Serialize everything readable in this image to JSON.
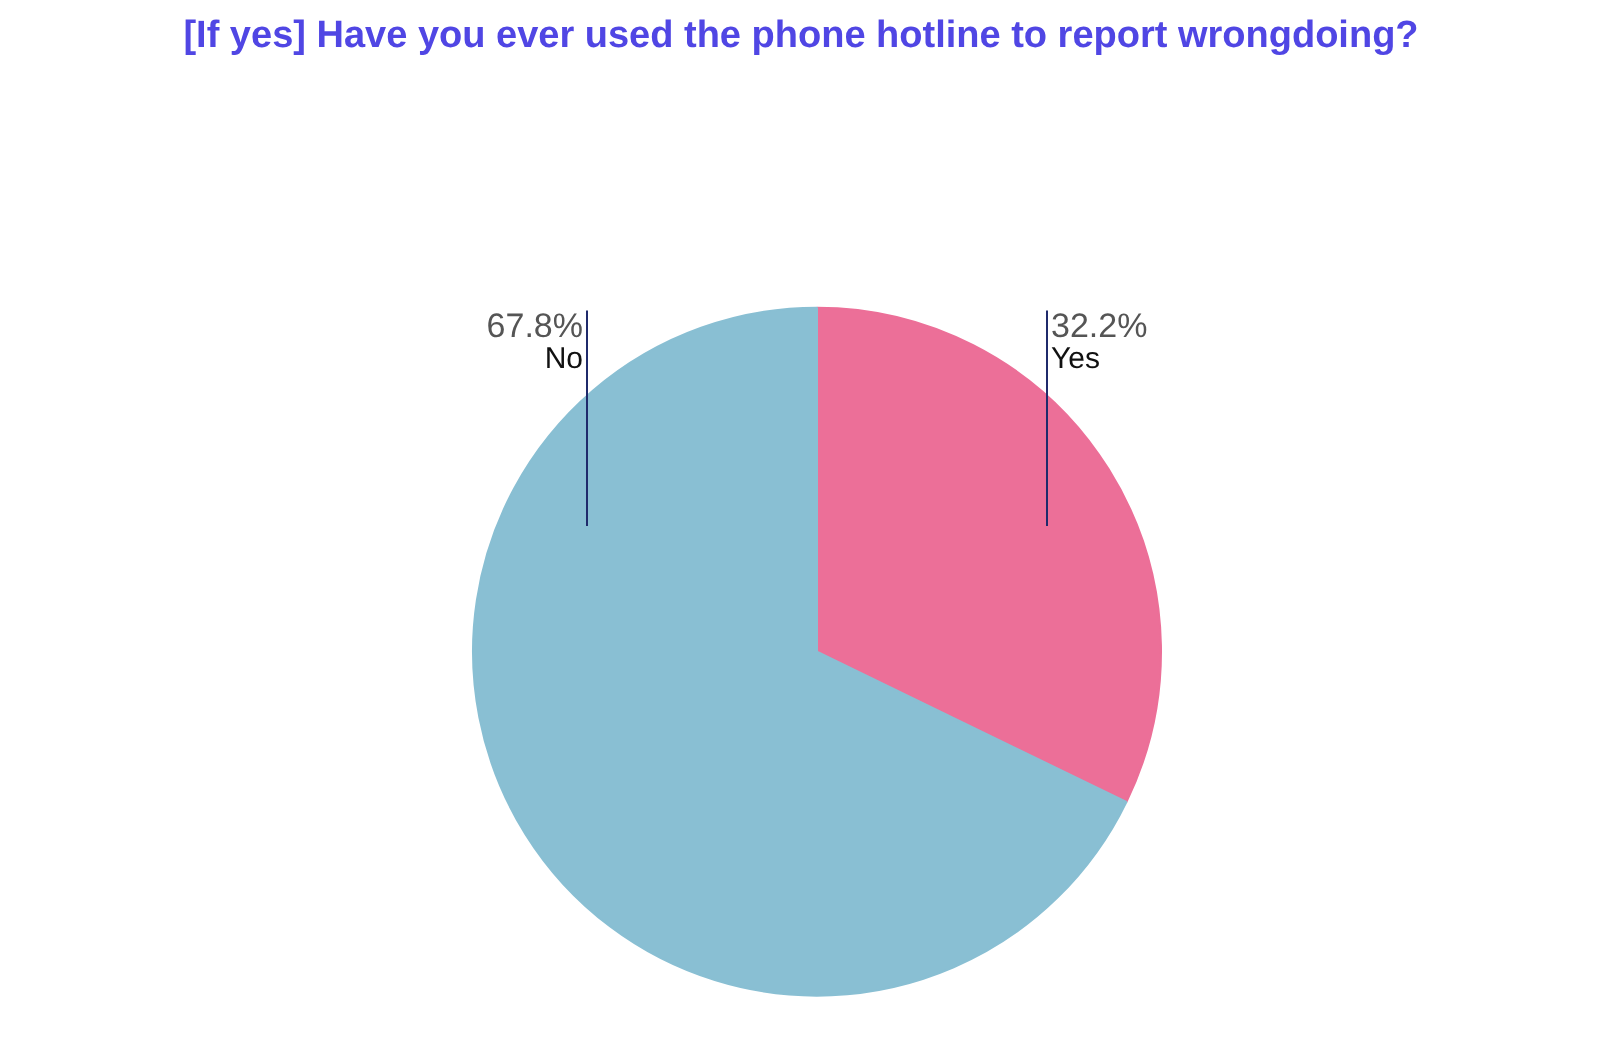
{
  "chart_data": {
    "type": "pie",
    "title": "[If yes] Have you ever used the phone hotline to report wrongdoing?",
    "categories": [
      "Yes",
      "No"
    ],
    "values": [
      32.2,
      67.8
    ],
    "value_labels": [
      "32.2%",
      "67.8%"
    ],
    "colors": [
      "#ec6f98",
      "#89bfd3"
    ]
  }
}
